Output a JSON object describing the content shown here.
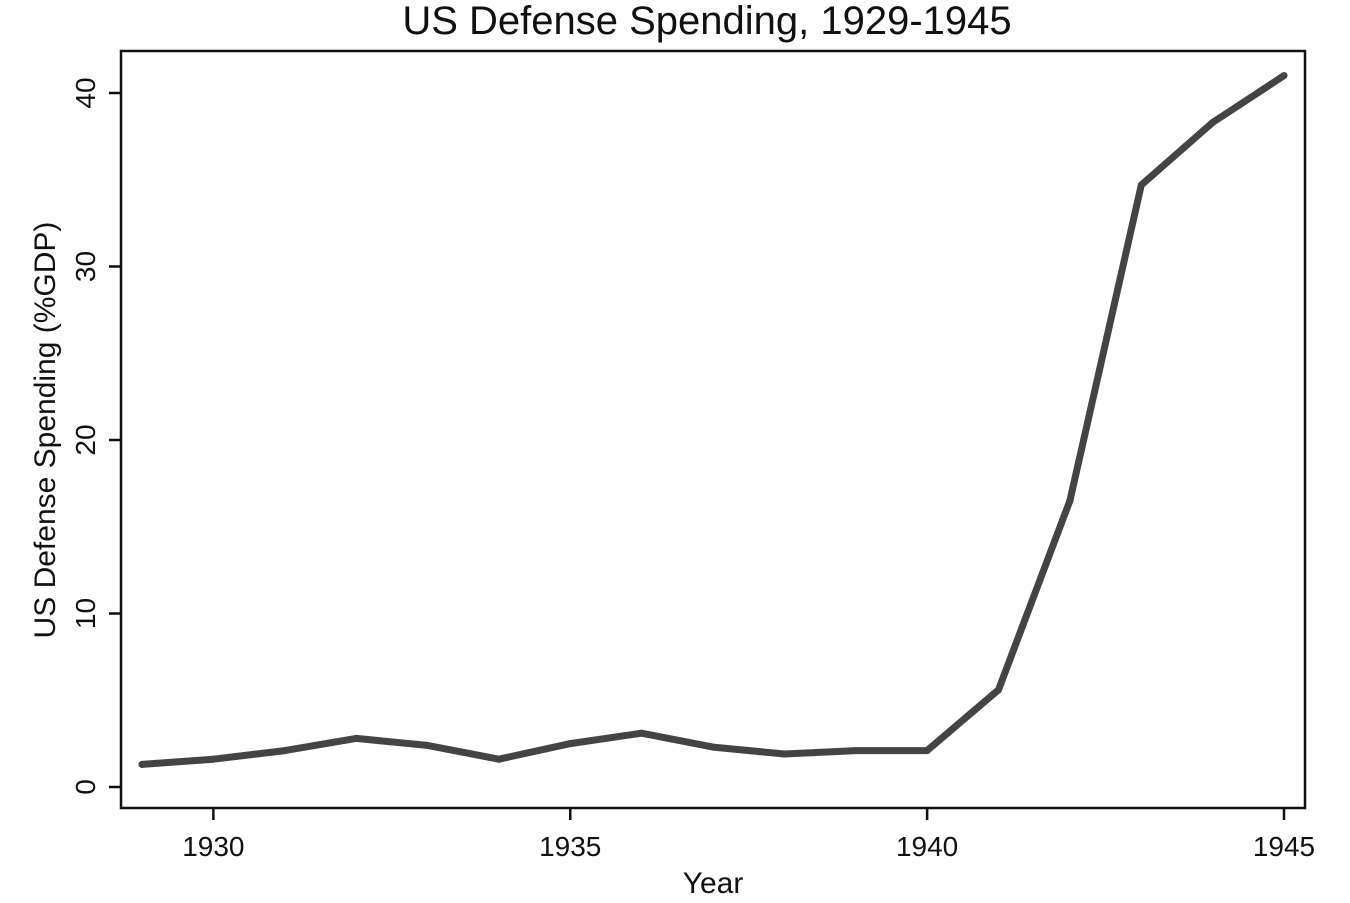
{
  "chart_data": {
    "type": "line",
    "title": "US Defense Spending, 1929-1945",
    "xlabel": "Year",
    "ylabel": "US Defense Spending (%GDP)",
    "xlim": [
      1929,
      1945
    ],
    "ylim": [
      0,
      41
    ],
    "x_ticks": [
      1930,
      1935,
      1940,
      1945
    ],
    "y_ticks": [
      0,
      10,
      20,
      30,
      40
    ],
    "grid": false,
    "legend": "none",
    "line_color": "#444444",
    "series": [
      {
        "x": [
          1929,
          1930,
          1931,
          1932,
          1933,
          1934,
          1935,
          1936,
          1937,
          1938,
          1939,
          1940,
          1941,
          1942,
          1943,
          1944,
          1945
        ],
        "values": [
          1.3,
          1.6,
          2.1,
          2.8,
          2.4,
          1.6,
          2.5,
          3.1,
          2.3,
          1.9,
          2.1,
          2.1,
          5.6,
          16.5,
          34.7,
          38.3,
          41.0
        ]
      }
    ]
  }
}
